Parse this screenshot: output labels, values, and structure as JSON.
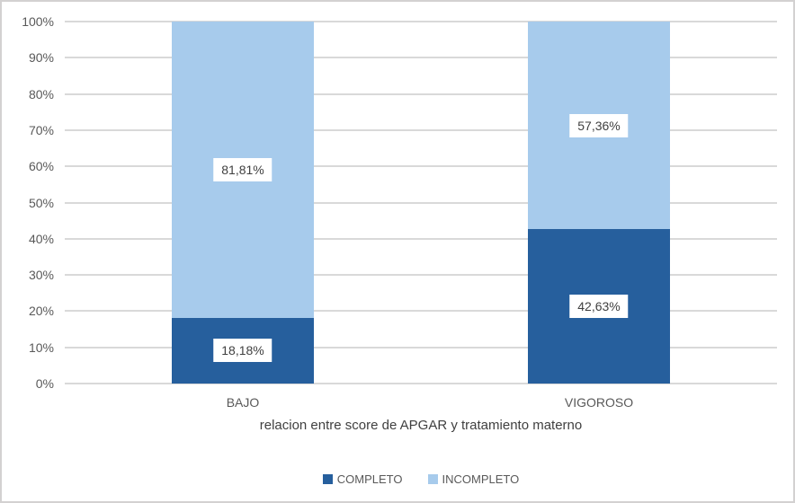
{
  "chart_data": {
    "type": "bar",
    "subtype": "stacked-100-percent",
    "title": "",
    "xlabel": "relacion entre score de APGAR y tratamiento materno",
    "ylabel": "",
    "categories": [
      "BAJO",
      "VIGOROSO"
    ],
    "series": [
      {
        "name": "COMPLETO",
        "color": "#265f9d",
        "values": [
          18.18,
          42.63
        ],
        "labels": [
          "18,18%",
          "42,63%"
        ]
      },
      {
        "name": "INCOMPLETO",
        "color": "#a7cbec",
        "values": [
          81.81,
          57.36
        ],
        "labels": [
          "81,81%",
          "57,36%"
        ]
      }
    ],
    "y_ticks": [
      "0%",
      "10%",
      "20%",
      "30%",
      "40%",
      "50%",
      "60%",
      "70%",
      "80%",
      "90%",
      "100%"
    ],
    "ylim": [
      0,
      100
    ],
    "grid": true,
    "legend_position": "bottom",
    "colors": {
      "gridline": "#d9d9d9",
      "tick_text": "#595959",
      "category_text": "#595959",
      "axis_title_text": "#404040",
      "data_label_text": "#404040",
      "data_label_bg": "#ffffff",
      "legend_text": "#595959",
      "border": "#d3d1d1",
      "background": "#ffffff"
    }
  }
}
